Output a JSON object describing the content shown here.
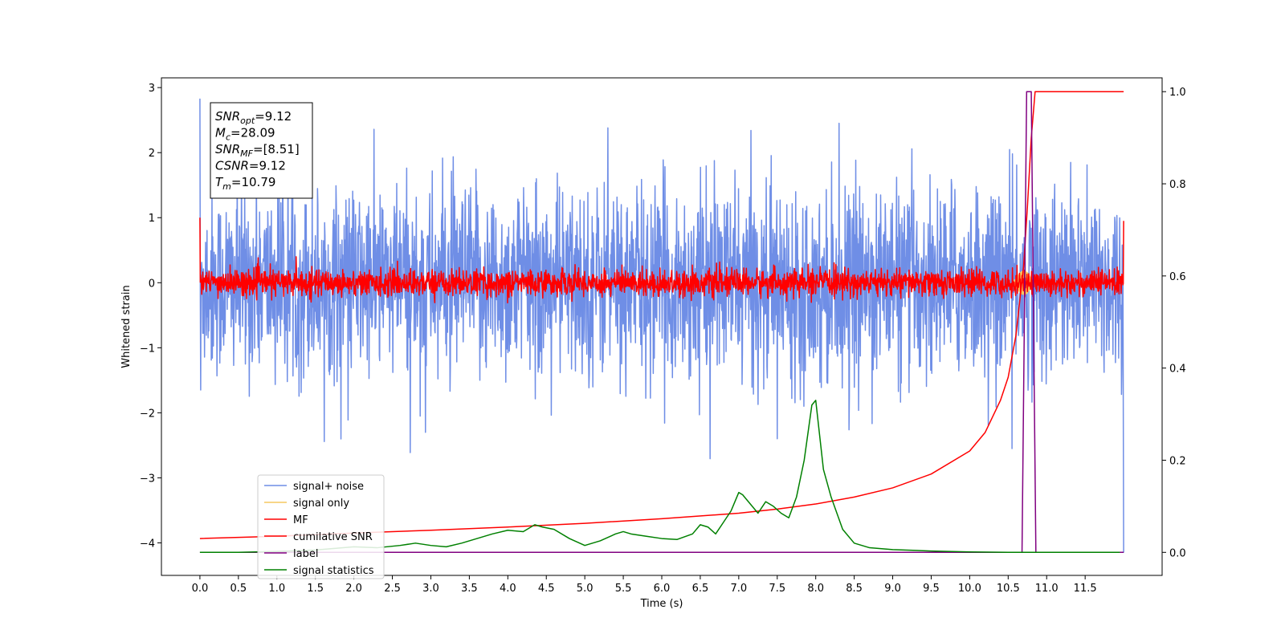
{
  "chart_data": {
    "type": "line",
    "title": "",
    "xlabel": "Time (s)",
    "ylabel": "Whitened strain",
    "y2label": "",
    "xlim": [
      -0.5,
      12.5
    ],
    "ylim": [
      -4.5,
      3.15
    ],
    "y2lim": [
      -0.05,
      1.03
    ],
    "xticks": [
      0.0,
      0.5,
      1.0,
      1.5,
      2.0,
      2.5,
      3.0,
      3.5,
      4.0,
      4.5,
      5.0,
      5.5,
      6.0,
      6.5,
      7.0,
      7.5,
      8.0,
      8.5,
      9.0,
      9.5,
      10.0,
      10.5,
      11.0,
      11.5
    ],
    "xtick_labels": [
      "0.0",
      "0.5",
      "1.0",
      "1.5",
      "2.0",
      "2.5",
      "3.0",
      "3.5",
      "4.0",
      "4.5",
      "5.0",
      "5.5",
      "6.0",
      "6.5",
      "7.0",
      "7.5",
      "8.0",
      "8.5",
      "9.0",
      "9.5",
      "10.0",
      "10.5",
      "11.0",
      "11.5"
    ],
    "yticks": [
      -4,
      -3,
      -2,
      -1,
      0,
      1,
      2,
      3
    ],
    "ytick_labels": [
      "−4",
      "−3",
      "−2",
      "−1",
      "0",
      "1",
      "2",
      "3"
    ],
    "y2ticks": [
      0.0,
      0.2,
      0.4,
      0.6,
      0.8,
      1.0
    ],
    "y2tick_labels": [
      "0.0",
      "0.2",
      "0.4",
      "0.6",
      "0.8",
      "1.0"
    ],
    "grid": false,
    "legend_position": "lower-left",
    "annotation": {
      "lines": [
        {
          "base": "SNR",
          "sub": "opt",
          "value": "=9.12"
        },
        {
          "base": "M",
          "sub": "c",
          "value": "=28.09"
        },
        {
          "base": "SNR",
          "sub": "MF",
          "value": "=[8.51]"
        },
        {
          "base": "CSNR",
          "sub": "",
          "value": "=9.12"
        },
        {
          "base": "T",
          "sub": "m",
          "value": "=10.79"
        }
      ]
    },
    "series": [
      {
        "name": "signal+ noise",
        "color": "#6f8ee6",
        "axis": "left",
        "kind": "noise",
        "x_range": [
          0.0,
          12.0
        ],
        "std": 0.72,
        "extremes": [
          [
            0.0,
            2.83
          ],
          [
            0.01,
            -1.65
          ],
          [
            5.3,
            2.38
          ],
          [
            2.93,
            -2.3
          ],
          [
            7.5,
            -2.4
          ],
          [
            10.55,
            -2.55
          ],
          [
            12.0,
            -4.15
          ]
        ]
      },
      {
        "name": "signal only",
        "color": "#f5c860",
        "axis": "left",
        "kind": "chirp",
        "x_range": [
          10.55,
          10.82
        ],
        "peak_amplitude": 0.25
      },
      {
        "name": "MF",
        "color": "#ff0000",
        "axis": "left",
        "kind": "noise",
        "x_range": [
          0.0,
          12.0
        ],
        "std": 0.1,
        "extremes": [
          [
            0.0,
            1.0
          ],
          [
            1.25,
            0.4
          ],
          [
            12.0,
            0.95
          ]
        ]
      },
      {
        "name": "cumilative SNR",
        "color": "#ff0000",
        "axis": "right",
        "x": [
          0.0,
          1.0,
          2.0,
          3.0,
          4.0,
          5.0,
          6.0,
          7.0,
          7.5,
          8.0,
          8.5,
          9.0,
          9.5,
          10.0,
          10.2,
          10.4,
          10.5,
          10.6,
          10.7,
          10.75,
          10.8,
          10.85,
          12.0
        ],
        "y": [
          0.03,
          0.035,
          0.042,
          0.048,
          0.055,
          0.063,
          0.073,
          0.085,
          0.094,
          0.105,
          0.12,
          0.14,
          0.17,
          0.22,
          0.26,
          0.33,
          0.38,
          0.47,
          0.62,
          0.75,
          0.9,
          1.0,
          1.0
        ]
      },
      {
        "name": "label",
        "color": "#800080",
        "axis": "right",
        "x": [
          0.0,
          10.68,
          10.74,
          10.8,
          10.86,
          12.0
        ],
        "y": [
          0.0,
          0.0,
          1.0,
          1.0,
          0.0,
          0.0
        ]
      },
      {
        "name": "signal statistics",
        "color": "#008000",
        "axis": "right",
        "x": [
          0.0,
          0.5,
          1.0,
          1.5,
          2.0,
          2.3,
          2.6,
          2.8,
          3.0,
          3.2,
          3.4,
          3.6,
          3.8,
          4.0,
          4.2,
          4.35,
          4.45,
          4.6,
          4.8,
          5.0,
          5.2,
          5.4,
          5.5,
          5.6,
          5.8,
          6.0,
          6.2,
          6.4,
          6.5,
          6.6,
          6.7,
          6.8,
          6.9,
          7.0,
          7.05,
          7.15,
          7.25,
          7.35,
          7.45,
          7.55,
          7.65,
          7.75,
          7.85,
          7.95,
          8.0,
          8.1,
          8.2,
          8.35,
          8.5,
          8.7,
          9.0,
          9.5,
          10.0,
          10.5,
          11.0,
          11.5,
          11.95
        ],
        "y": [
          0.0,
          0.0,
          0.002,
          0.005,
          0.012,
          0.01,
          0.015,
          0.02,
          0.015,
          0.012,
          0.02,
          0.03,
          0.04,
          0.048,
          0.045,
          0.06,
          0.055,
          0.05,
          0.03,
          0.015,
          0.025,
          0.04,
          0.045,
          0.04,
          0.035,
          0.03,
          0.028,
          0.04,
          0.06,
          0.055,
          0.04,
          0.065,
          0.09,
          0.13,
          0.125,
          0.105,
          0.085,
          0.11,
          0.1,
          0.085,
          0.075,
          0.12,
          0.2,
          0.32,
          0.33,
          0.18,
          0.12,
          0.05,
          0.02,
          0.01,
          0.006,
          0.003,
          0.001,
          0.0,
          0.0,
          0.0,
          0.0
        ]
      }
    ]
  }
}
